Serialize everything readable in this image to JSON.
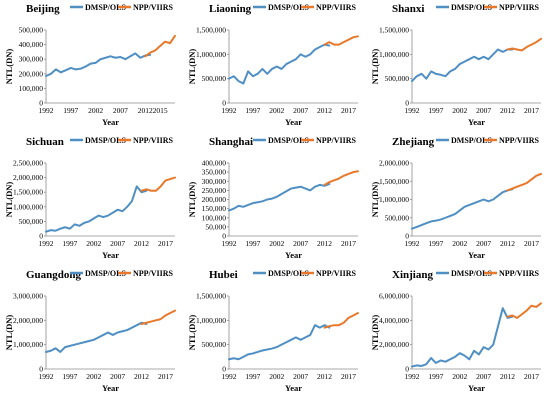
{
  "colors": {
    "dmsp": "#4f8fc4",
    "npp": "#e8782a",
    "axis": "#8c8c8c"
  },
  "legend": {
    "dmsp": "DMSP/OLS",
    "npp": "NPP/VIIRS"
  },
  "chart_data": [
    {
      "type": "line",
      "title": "Beijing",
      "xlabel": "Year",
      "ylabel": "NTL(DN)",
      "ylim": [
        0,
        500000
      ],
      "yticks": [
        "0",
        "100,000",
        "200,000",
        "300,000",
        "400,000",
        "500,000"
      ],
      "xticks": [
        "1992",
        "1997",
        "2002",
        "2007",
        "2012",
        "2015"
      ],
      "xlim": [
        1992,
        2018
      ],
      "series": [
        {
          "name": "DMSP/OLS",
          "x": [
            1992,
            1993,
            1994,
            1995,
            1996,
            1997,
            1998,
            1999,
            2000,
            2001,
            2002,
            2003,
            2004,
            2005,
            2006,
            2007,
            2008,
            2009,
            2010,
            2011,
            2012,
            2013
          ],
          "y": [
            185000,
            200000,
            230000,
            210000,
            225000,
            240000,
            230000,
            235000,
            250000,
            270000,
            275000,
            300000,
            310000,
            320000,
            310000,
            315000,
            300000,
            320000,
            340000,
            310000,
            325000,
            330000
          ]
        },
        {
          "name": "NPP/VIIRS",
          "x": [
            2012,
            2013,
            2014,
            2015,
            2016,
            2017,
            2018
          ],
          "y": [
            320000,
            345000,
            360000,
            390000,
            420000,
            410000,
            460000
          ]
        }
      ]
    },
    {
      "type": "line",
      "title": "Liaoning",
      "xlabel": "Year",
      "ylabel": "NTL(DN)",
      "ylim": [
        0,
        1500000
      ],
      "yticks": [
        "0",
        "500,000",
        "1,000,000",
        "1,500,000"
      ],
      "xticks": [
        "1992",
        "1997",
        "2002",
        "2007",
        "2012",
        "2017"
      ],
      "xlim": [
        1992,
        2019
      ],
      "series": [
        {
          "name": "DMSP/OLS",
          "x": [
            1992,
            1993,
            1994,
            1995,
            1996,
            1997,
            1998,
            1999,
            2000,
            2001,
            2002,
            2003,
            2004,
            2005,
            2006,
            2007,
            2008,
            2009,
            2010,
            2011,
            2012,
            2013
          ],
          "y": [
            500000,
            550000,
            450000,
            400000,
            650000,
            550000,
            600000,
            700000,
            600000,
            700000,
            750000,
            700000,
            800000,
            850000,
            900000,
            1000000,
            950000,
            1000000,
            1100000,
            1150000,
            1200000,
            1180000
          ]
        },
        {
          "name": "NPP/VIIRS",
          "x": [
            2012,
            2013,
            2014,
            2015,
            2016,
            2017,
            2018,
            2019
          ],
          "y": [
            1200000,
            1250000,
            1200000,
            1200000,
            1250000,
            1300000,
            1350000,
            1370000
          ]
        }
      ]
    },
    {
      "type": "line",
      "title": "Shanxi",
      "xlabel": "Year",
      "ylabel": "NTL(DN)",
      "ylim": [
        0,
        1500000
      ],
      "yticks": [
        "0",
        "500,000",
        "1,000,000",
        "1,500,000"
      ],
      "xticks": [
        "1992",
        "1997",
        "2002",
        "2007",
        "2012",
        "2017"
      ],
      "xlim": [
        1992,
        2019
      ],
      "series": [
        {
          "name": "DMSP/OLS",
          "x": [
            1992,
            1993,
            1994,
            1995,
            1996,
            1997,
            1998,
            1999,
            2000,
            2001,
            2002,
            2003,
            2004,
            2005,
            2006,
            2007,
            2008,
            2009,
            2010,
            2011,
            2012,
            2013
          ],
          "y": [
            450000,
            550000,
            600000,
            500000,
            650000,
            600000,
            580000,
            550000,
            650000,
            700000,
            800000,
            850000,
            900000,
            950000,
            900000,
            950000,
            900000,
            1000000,
            1100000,
            1050000,
            1100000,
            1100000
          ]
        },
        {
          "name": "NPP/VIIRS",
          "x": [
            2012,
            2013,
            2014,
            2015,
            2016,
            2017,
            2018,
            2019
          ],
          "y": [
            1100000,
            1120000,
            1100000,
            1080000,
            1150000,
            1200000,
            1250000,
            1320000
          ]
        }
      ]
    },
    {
      "type": "line",
      "title": "Sichuan",
      "xlabel": "Year",
      "ylabel": "NTL(DN)",
      "ylim": [
        0,
        2500000
      ],
      "yticks": [
        "0",
        "500,000",
        "1,000,000",
        "1,500,000",
        "2,000,000",
        "2,500,000"
      ],
      "xticks": [
        "1992",
        "1997",
        "2002",
        "2007",
        "2012",
        "2017"
      ],
      "xlim": [
        1992,
        2019
      ],
      "series": [
        {
          "name": "DMSP/OLS",
          "x": [
            1992,
            1993,
            1994,
            1995,
            1996,
            1997,
            1998,
            1999,
            2000,
            2001,
            2002,
            2003,
            2004,
            2005,
            2006,
            2007,
            2008,
            2009,
            2010,
            2011,
            2012,
            2013
          ],
          "y": [
            150000,
            200000,
            180000,
            250000,
            300000,
            250000,
            400000,
            350000,
            450000,
            500000,
            600000,
            700000,
            650000,
            700000,
            800000,
            900000,
            850000,
            1000000,
            1200000,
            1700000,
            1500000,
            1550000
          ]
        },
        {
          "name": "NPP/VIIRS",
          "x": [
            2012,
            2013,
            2014,
            2015,
            2016,
            2017,
            2018,
            2019
          ],
          "y": [
            1550000,
            1600000,
            1550000,
            1550000,
            1700000,
            1900000,
            1950000,
            2000000
          ]
        }
      ]
    },
    {
      "type": "line",
      "title": "Shanghai",
      "xlabel": "Year",
      "ylabel": "NTL(DN)",
      "ylim": [
        0,
        400000
      ],
      "yticks": [
        "0",
        "50,000",
        "100,000",
        "150,000",
        "200,000",
        "250,000",
        "300,000",
        "350,000",
        "400,000"
      ],
      "xticks": [
        "1992",
        "1997",
        "2002",
        "2007",
        "2012",
        "2017"
      ],
      "xlim": [
        1992,
        2019
      ],
      "series": [
        {
          "name": "DMSP/OLS",
          "x": [
            1992,
            1993,
            1994,
            1995,
            1996,
            1997,
            1998,
            1999,
            2000,
            2001,
            2002,
            2003,
            2004,
            2005,
            2006,
            2007,
            2008,
            2009,
            2010,
            2011,
            2012,
            2013
          ],
          "y": [
            140000,
            150000,
            165000,
            160000,
            170000,
            180000,
            185000,
            190000,
            200000,
            205000,
            215000,
            230000,
            245000,
            260000,
            265000,
            270000,
            260000,
            250000,
            270000,
            280000,
            275000,
            285000
          ]
        },
        {
          "name": "NPP/VIIRS",
          "x": [
            2012,
            2013,
            2014,
            2015,
            2016,
            2017,
            2018,
            2019
          ],
          "y": [
            280000,
            295000,
            305000,
            315000,
            330000,
            340000,
            350000,
            355000
          ]
        }
      ]
    },
    {
      "type": "line",
      "title": "Zhejiang",
      "xlabel": "Year",
      "ylabel": "NTL(DN)",
      "ylim": [
        0,
        2000000
      ],
      "yticks": [
        "0",
        "500,000",
        "1,000,000",
        "1,500,000",
        "2,000,000"
      ],
      "xticks": [
        "1992",
        "1997",
        "2002",
        "2007",
        "2012",
        "2017"
      ],
      "xlim": [
        1992,
        2019
      ],
      "series": [
        {
          "name": "DMSP/OLS",
          "x": [
            1992,
            1993,
            1994,
            1995,
            1996,
            1997,
            1998,
            1999,
            2000,
            2001,
            2002,
            2003,
            2004,
            2005,
            2006,
            2007,
            2008,
            2009,
            2010,
            2011,
            2012,
            2013
          ],
          "y": [
            200000,
            250000,
            300000,
            350000,
            400000,
            420000,
            450000,
            500000,
            550000,
            600000,
            700000,
            800000,
            850000,
            900000,
            950000,
            1000000,
            950000,
            1000000,
            1100000,
            1200000,
            1250000,
            1280000
          ]
        },
        {
          "name": "NPP/VIIRS",
          "x": [
            2012,
            2013,
            2014,
            2015,
            2016,
            2017,
            2018,
            2019
          ],
          "y": [
            1250000,
            1300000,
            1350000,
            1400000,
            1450000,
            1550000,
            1650000,
            1700000
          ]
        }
      ]
    },
    {
      "type": "line",
      "title": "Guangdong",
      "xlabel": "Year",
      "ylabel": "NTL(DN)",
      "ylim": [
        0,
        3000000
      ],
      "yticks": [
        "0",
        "1,000,000",
        "2,000,000",
        "3,000,000"
      ],
      "xticks": [
        "1992",
        "1997",
        "2002",
        "2007",
        "2012",
        "2017"
      ],
      "xlim": [
        1992,
        2019
      ],
      "series": [
        {
          "name": "DMSP/OLS",
          "x": [
            1992,
            1993,
            1994,
            1995,
            1996,
            1997,
            1998,
            1999,
            2000,
            2001,
            2002,
            2003,
            2004,
            2005,
            2006,
            2007,
            2008,
            2009,
            2010,
            2011,
            2012,
            2013
          ],
          "y": [
            700000,
            750000,
            850000,
            700000,
            900000,
            950000,
            1000000,
            1050000,
            1100000,
            1150000,
            1200000,
            1300000,
            1400000,
            1500000,
            1400000,
            1500000,
            1550000,
            1600000,
            1700000,
            1800000,
            1900000,
            1850000
          ]
        },
        {
          "name": "NPP/VIIRS",
          "x": [
            2012,
            2013,
            2014,
            2015,
            2016,
            2017,
            2018,
            2019
          ],
          "y": [
            1850000,
            1900000,
            1950000,
            2000000,
            2050000,
            2200000,
            2300000,
            2400000
          ]
        }
      ]
    },
    {
      "type": "line",
      "title": "Hubei",
      "xlabel": "Year",
      "ylabel": "NTL(DN)",
      "ylim": [
        0,
        1500000
      ],
      "yticks": [
        "0",
        "500,000",
        "1,000,000",
        "1,500,000"
      ],
      "xticks": [
        "1992",
        "1997",
        "2002",
        "2007",
        "2012",
        "2017"
      ],
      "xlim": [
        1992,
        2019
      ],
      "series": [
        {
          "name": "DMSP/OLS",
          "x": [
            1992,
            1993,
            1994,
            1995,
            1996,
            1997,
            1998,
            1999,
            2000,
            2001,
            2002,
            2003,
            2004,
            2005,
            2006,
            2007,
            2008,
            2009,
            2010,
            2011,
            2012,
            2013
          ],
          "y": [
            200000,
            220000,
            200000,
            250000,
            300000,
            320000,
            350000,
            380000,
            400000,
            420000,
            450000,
            500000,
            550000,
            600000,
            650000,
            600000,
            650000,
            700000,
            900000,
            850000,
            900000,
            850000
          ]
        },
        {
          "name": "NPP/VIIRS",
          "x": [
            2012,
            2013,
            2014,
            2015,
            2016,
            2017,
            2018,
            2019
          ],
          "y": [
            850000,
            880000,
            900000,
            900000,
            950000,
            1050000,
            1100000,
            1150000
          ]
        }
      ]
    },
    {
      "type": "line",
      "title": "Xinjiang",
      "xlabel": "Year",
      "ylabel": "NTL(DN)",
      "ylim": [
        0,
        6000000
      ],
      "yticks": [
        "0",
        "2,000,000",
        "4,000,000",
        "6,000,000"
      ],
      "xticks": [
        "1992",
        "1997",
        "2002",
        "2007",
        "2012",
        "2017"
      ],
      "xlim": [
        1992,
        2019
      ],
      "series": [
        {
          "name": "DMSP/OLS",
          "x": [
            1992,
            1993,
            1994,
            1995,
            1996,
            1997,
            1998,
            1999,
            2000,
            2001,
            2002,
            2003,
            2004,
            2005,
            2006,
            2007,
            2008,
            2009,
            2010,
            2011,
            2012,
            2013
          ],
          "y": [
            200000,
            300000,
            250000,
            400000,
            900000,
            500000,
            700000,
            600000,
            800000,
            1000000,
            1300000,
            1100000,
            800000,
            1500000,
            1200000,
            1800000,
            1600000,
            2000000,
            3500000,
            5000000,
            4200000,
            4300000
          ]
        },
        {
          "name": "NPP/VIIRS",
          "x": [
            2012,
            2013,
            2014,
            2015,
            2016,
            2017,
            2018,
            2019
          ],
          "y": [
            4300000,
            4400000,
            4200000,
            4500000,
            4800000,
            5200000,
            5100000,
            5400000
          ]
        }
      ]
    }
  ]
}
